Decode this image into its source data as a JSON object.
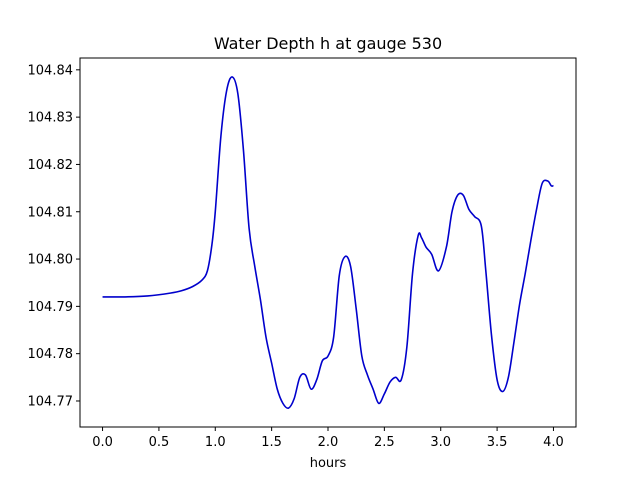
{
  "chart_data": {
    "type": "line",
    "title": "Water Depth h at gauge 530",
    "xlabel": "hours",
    "ylabel": "",
    "xlim": [
      -0.2,
      4.2
    ],
    "ylim": [
      104.7645,
      104.8425
    ],
    "xticks": [
      0.0,
      0.5,
      1.0,
      1.5,
      2.0,
      2.5,
      3.0,
      3.5,
      4.0
    ],
    "xtick_labels": [
      "0.0",
      "0.5",
      "1.0",
      "1.5",
      "2.0",
      "2.5",
      "3.0",
      "3.5",
      "4.0"
    ],
    "yticks": [
      104.77,
      104.78,
      104.79,
      104.8,
      104.81,
      104.82,
      104.83,
      104.84
    ],
    "ytick_labels": [
      "104.77",
      "104.78",
      "104.79",
      "104.80",
      "104.81",
      "104.82",
      "104.83",
      "104.84"
    ],
    "grid": false,
    "series": [
      {
        "color": "#0000cc",
        "x": [
          0.0,
          0.2,
          0.4,
          0.6,
          0.7,
          0.8,
          0.88,
          0.93,
          0.97,
          1.0,
          1.05,
          1.1,
          1.15,
          1.2,
          1.25,
          1.3,
          1.35,
          1.4,
          1.45,
          1.5,
          1.55,
          1.6,
          1.65,
          1.7,
          1.75,
          1.8,
          1.85,
          1.9,
          1.95,
          2.0,
          2.05,
          2.1,
          2.15,
          2.2,
          2.25,
          2.3,
          2.35,
          2.4,
          2.45,
          2.5,
          2.55,
          2.6,
          2.65,
          2.7,
          2.75,
          2.8,
          2.83,
          2.87,
          2.92,
          2.98,
          3.05,
          3.1,
          3.15,
          3.2,
          3.25,
          3.3,
          3.36,
          3.4,
          3.45,
          3.5,
          3.55,
          3.6,
          3.65,
          3.7,
          3.75,
          3.8,
          3.85,
          3.9,
          3.95,
          3.98,
          4.0
        ],
        "y": [
          104.792,
          104.792,
          104.7922,
          104.7928,
          104.7933,
          104.7942,
          104.7955,
          104.7975,
          104.803,
          104.81,
          104.826,
          104.8355,
          104.8385,
          104.835,
          104.823,
          104.8065,
          104.7985,
          104.7915,
          104.7835,
          104.778,
          104.7725,
          104.7695,
          104.7685,
          104.7705,
          104.775,
          104.7755,
          104.7725,
          104.7745,
          104.7785,
          104.7795,
          104.7835,
          104.7965,
          104.8005,
          104.7985,
          104.7895,
          104.7795,
          104.7755,
          104.7725,
          104.7695,
          104.7715,
          104.774,
          104.775,
          104.7745,
          104.7815,
          104.797,
          104.805,
          104.8045,
          104.8025,
          104.801,
          104.7975,
          104.8025,
          104.81,
          104.8135,
          104.8135,
          104.8105,
          104.809,
          104.807,
          104.7975,
          104.784,
          104.7745,
          104.772,
          104.775,
          104.7825,
          104.7905,
          104.797,
          104.804,
          104.8105,
          104.816,
          104.8165,
          104.8155,
          104.8155
        ]
      }
    ]
  }
}
